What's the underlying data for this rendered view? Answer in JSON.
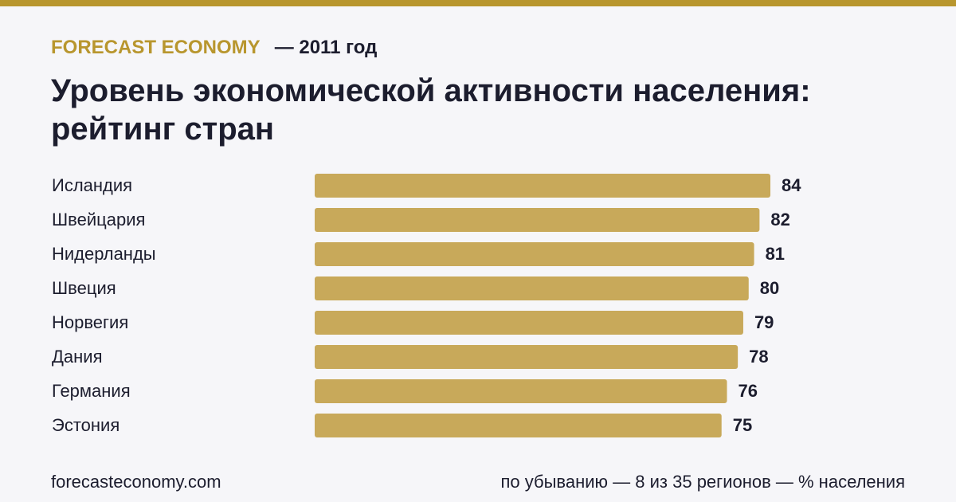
{
  "chart_data": {
    "type": "bar",
    "orientation": "horizontal",
    "brand": "FORECAST ECONOMY",
    "subtitle": "— 2011 год",
    "title": "Уровень экономической активности населения: рейтинг стран",
    "categories": [
      "Исландия",
      "Швейцария",
      "Нидерланды",
      "Швеция",
      "Норвегия",
      "Дания",
      "Германия",
      "Эстония"
    ],
    "values": [
      84,
      82,
      81,
      80,
      79,
      78,
      76,
      75
    ],
    "color": "#c8a95a",
    "source": "forecasteconomy.com",
    "note": "по убыванию — 8 из 35 регионов — % населения"
  }
}
